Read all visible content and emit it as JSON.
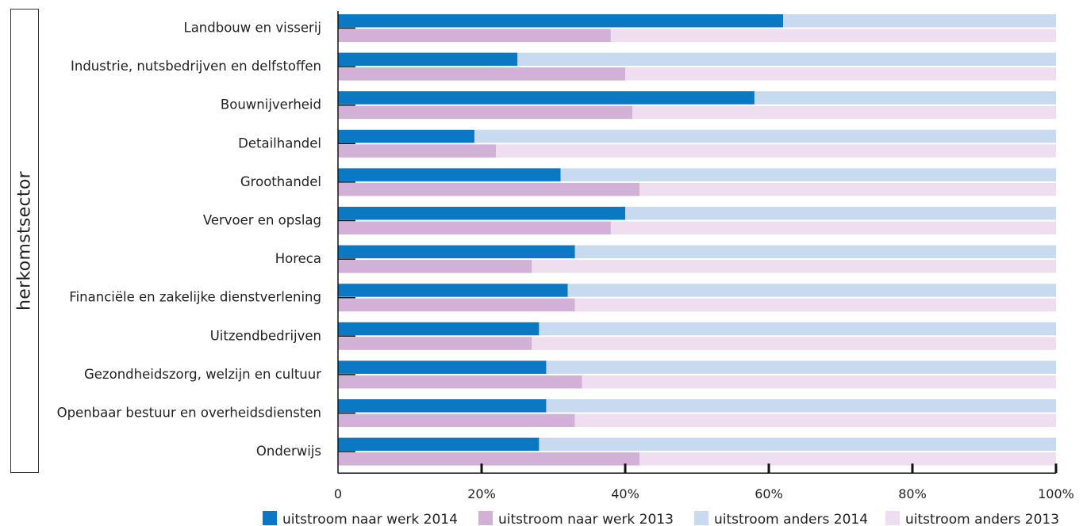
{
  "chart_data": {
    "type": "bar",
    "orientation": "horizontal",
    "stacked": "percent",
    "y_axis_label": "herkomstsector",
    "categories": [
      "Landbouw en visserij",
      "Industrie, nutsbedrijven en delfstoffen",
      "Bouwnijverheid",
      "Detailhandel",
      "Groothandel",
      "Vervoer en opslag",
      "Horeca",
      "Financiële en zakelijke dienstverlening",
      "Uitzendbedrijven",
      "Gezondheidszorg, welzijn en cultuur",
      "Openbaar bestuur en overheidsdiensten",
      "Onderwijs"
    ],
    "series": [
      {
        "name": "uitstroom naar werk 2014",
        "color": "#0a78c2",
        "group": "2014",
        "values": [
          62,
          25,
          58,
          19,
          31,
          40,
          33,
          32,
          28,
          29,
          29,
          28
        ]
      },
      {
        "name": "uitstroom naar werk 2013",
        "color": "#d2b1d7",
        "group": "2013",
        "values": [
          38,
          40,
          41,
          22,
          42,
          38,
          27,
          33,
          27,
          34,
          33,
          42
        ]
      },
      {
        "name": "uitstroom anders 2014",
        "color": "#c7daf0",
        "group": "2014",
        "values": [
          38,
          75,
          42,
          81,
          69,
          60,
          67,
          68,
          72,
          71,
          71,
          72
        ]
      },
      {
        "name": "uitstroom anders 2013",
        "color": "#eedef0",
        "group": "2013",
        "values": [
          62,
          60,
          59,
          78,
          58,
          62,
          73,
          67,
          73,
          66,
          67,
          58
        ]
      }
    ],
    "xlim": [
      0,
      100
    ],
    "x_ticks": [
      "0",
      "20%",
      "40%",
      "60%",
      "80%",
      "100%"
    ],
    "legend_position": "bottom"
  }
}
